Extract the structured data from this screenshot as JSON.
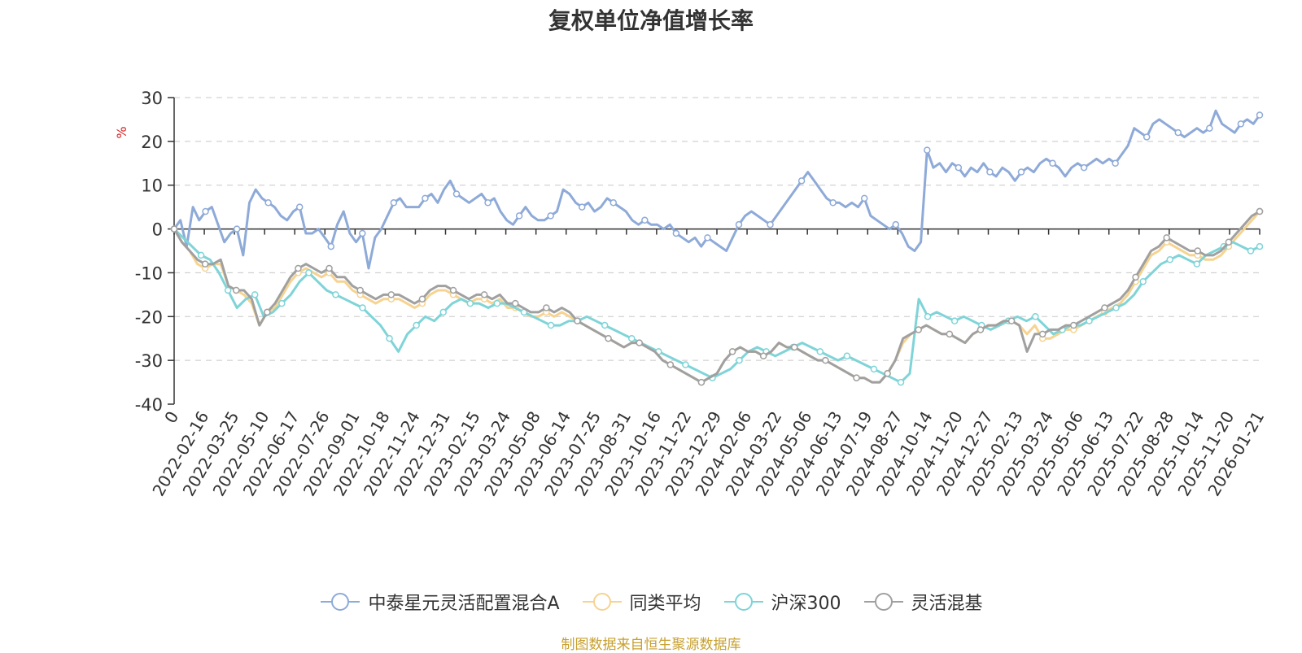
{
  "chart_data": {
    "type": "line",
    "title": "复权单位净值增长率",
    "ylabel": "%",
    "ylim": [
      -40,
      30
    ],
    "yticks": [
      30,
      20,
      10,
      0,
      -10,
      -20,
      -30,
      -40
    ],
    "grid": true,
    "legend_position": "bottom-center",
    "x_labels": [
      "0",
      "2022-02-16",
      "2022-03-25",
      "2022-05-10",
      "2022-06-17",
      "2022-07-26",
      "2022-09-01",
      "2022-10-18",
      "2022-11-24",
      "2022-12-31",
      "2023-02-15",
      "2023-03-24",
      "2023-05-08",
      "2023-06-14",
      "2023-07-25",
      "2023-08-31",
      "2023-10-16",
      "2023-11-22",
      "2023-12-29",
      "2024-02-06",
      "2024-03-22",
      "2024-05-06",
      "2024-06-13",
      "2024-07-19",
      "2024-08-27",
      "2024-10-14",
      "2024-11-20",
      "2024-12-27",
      "2025-02-13",
      "2025-03-24",
      "2025-05-06",
      "2025-06-13",
      "2025-07-22",
      "2025-08-28",
      "2025-10-14",
      "2025-11-20",
      "2026-01-21"
    ],
    "series": [
      {
        "name": "中泰星元灵活配置混合A",
        "color": "#8eaad8",
        "values": [
          0,
          2,
          -4,
          5,
          2,
          4,
          5,
          1,
          -3,
          -1,
          0,
          -6,
          6,
          9,
          7,
          6,
          5,
          3,
          2,
          4,
          5,
          -1,
          -1,
          0,
          -2,
          -4,
          1,
          4,
          -1,
          -3,
          -1,
          -9,
          -2,
          0,
          3,
          6,
          7,
          5,
          5,
          5,
          7,
          8,
          6,
          9,
          11,
          8,
          7,
          6,
          7,
          8,
          6,
          7,
          4,
          2,
          1,
          3,
          5,
          3,
          2,
          2,
          3,
          4,
          9,
          8,
          6,
          5,
          6,
          4,
          5,
          7,
          6,
          5,
          4,
          2,
          1,
          2,
          1,
          1,
          0,
          1,
          -1,
          -2,
          -3,
          -2,
          -4,
          -2,
          -3,
          -4,
          -5,
          -2,
          1,
          3,
          4,
          3,
          2,
          1,
          3,
          5,
          7,
          9,
          11,
          13,
          11,
          9,
          7,
          6,
          6,
          5,
          6,
          5,
          7,
          3,
          2,
          1,
          0,
          1,
          -1,
          -4,
          -5,
          -3,
          18,
          14,
          15,
          13,
          15,
          14,
          12,
          14,
          13,
          15,
          13,
          12,
          14,
          13,
          11,
          13,
          14,
          13,
          15,
          16,
          15,
          14,
          12,
          14,
          15,
          14,
          15,
          16,
          15,
          16,
          15,
          17,
          19,
          23,
          22,
          21,
          24,
          25,
          24,
          23,
          22,
          21,
          22,
          23,
          22,
          23,
          27,
          24,
          23,
          22,
          24,
          25,
          24,
          26
        ]
      },
      {
        "name": "同类平均",
        "color": "#f6d391",
        "values": [
          0,
          -3,
          -5,
          -8,
          -9,
          -8,
          -8,
          -13,
          -14,
          -15,
          -17,
          -22,
          -19,
          -18,
          -15,
          -12,
          -10,
          -9,
          -10,
          -11,
          -10,
          -12,
          -12,
          -14,
          -15,
          -16,
          -17,
          -16,
          -16,
          -16,
          -17,
          -18,
          -17,
          -15,
          -14,
          -14,
          -15,
          -16,
          -17,
          -16,
          -16,
          -17,
          -16,
          -18,
          -18,
          -19,
          -20,
          -20,
          -19,
          -20,
          -19,
          -20,
          -21,
          -22,
          -23,
          -24,
          -25,
          -26,
          -27,
          -26,
          -26,
          -27,
          -28,
          -30,
          -31,
          -32,
          -33,
          -34,
          -35,
          -34,
          -33,
          -30,
          -28,
          -27,
          -28,
          -28,
          -29,
          -28,
          -26,
          -27,
          -27,
          -28,
          -29,
          -30,
          -30,
          -31,
          -32,
          -33,
          -34,
          -34,
          -35,
          -35,
          -33,
          -30,
          -26,
          -24,
          -23,
          -22,
          -23,
          -24,
          -24,
          -25,
          -26,
          -24,
          -23,
          -22,
          -22,
          -21,
          -21,
          -22,
          -24,
          -22,
          -25,
          -25,
          -24,
          -23,
          -23,
          -22,
          -21,
          -20,
          -19,
          -18,
          -17,
          -15,
          -12,
          -9,
          -6,
          -5,
          -3,
          -4,
          -5,
          -6,
          -6,
          -7,
          -7,
          -6,
          -4,
          -2,
          0,
          2,
          4
        ]
      },
      {
        "name": "沪深300",
        "color": "#7fd4d8",
        "values": [
          0,
          -2,
          -4,
          -6,
          -7,
          -10,
          -14,
          -18,
          -16,
          -15,
          -20,
          -19,
          -17,
          -15,
          -12,
          -10,
          -12,
          -14,
          -15,
          -16,
          -17,
          -18,
          -20,
          -22,
          -25,
          -28,
          -24,
          -22,
          -20,
          -21,
          -19,
          -17,
          -16,
          -17,
          -17,
          -18,
          -17,
          -17,
          -18,
          -19,
          -20,
          -21,
          -22,
          -22,
          -21,
          -21,
          -20,
          -21,
          -22,
          -23,
          -24,
          -25,
          -26,
          -27,
          -28,
          -29,
          -30,
          -31,
          -32,
          -33,
          -34,
          -33,
          -32,
          -30,
          -28,
          -27,
          -28,
          -29,
          -28,
          -27,
          -26,
          -27,
          -28,
          -29,
          -30,
          -29,
          -30,
          -31,
          -32,
          -33,
          -34,
          -35,
          -33,
          -16,
          -20,
          -19,
          -20,
          -21,
          -20,
          -21,
          -22,
          -23,
          -22,
          -21,
          -20,
          -21,
          -20,
          -22,
          -24,
          -23,
          -22,
          -22,
          -21,
          -20,
          -19,
          -18,
          -17,
          -15,
          -12,
          -10,
          -8,
          -7,
          -6,
          -7,
          -8,
          -6,
          -5,
          -4,
          -3,
          -4,
          -5,
          -4
        ]
      },
      {
        "name": "灵活混基",
        "color": "#a0a0a0",
        "values": [
          0,
          -3,
          -5,
          -7,
          -8,
          -8,
          -7,
          -13,
          -14,
          -14,
          -16,
          -22,
          -19,
          -17,
          -14,
          -11,
          -9,
          -8,
          -9,
          -10,
          -9,
          -11,
          -11,
          -13,
          -14,
          -15,
          -16,
          -15,
          -15,
          -15,
          -16,
          -17,
          -16,
          -14,
          -13,
          -13,
          -14,
          -15,
          -16,
          -15,
          -15,
          -16,
          -15,
          -17,
          -17,
          -18,
          -19,
          -19,
          -18,
          -19,
          -18,
          -19,
          -21,
          -22,
          -23,
          -24,
          -25,
          -26,
          -27,
          -26,
          -26,
          -27,
          -28,
          -30,
          -31,
          -32,
          -33,
          -34,
          -35,
          -34,
          -33,
          -30,
          -28,
          -27,
          -28,
          -28,
          -29,
          -28,
          -26,
          -27,
          -27,
          -28,
          -29,
          -30,
          -30,
          -31,
          -32,
          -33,
          -34,
          -34,
          -35,
          -35,
          -33,
          -30,
          -25,
          -24,
          -23,
          -22,
          -23,
          -24,
          -24,
          -25,
          -26,
          -24,
          -23,
          -22,
          -22,
          -21,
          -21,
          -22,
          -28,
          -24,
          -24,
          -23,
          -23,
          -22,
          -22,
          -21,
          -20,
          -19,
          -18,
          -17,
          -16,
          -14,
          -11,
          -8,
          -5,
          -4,
          -2,
          -3,
          -4,
          -5,
          -5,
          -6,
          -6,
          -5,
          -3,
          -1,
          1,
          3,
          4
        ]
      }
    ]
  },
  "source_note": "制图数据来自恒生聚源数据库"
}
